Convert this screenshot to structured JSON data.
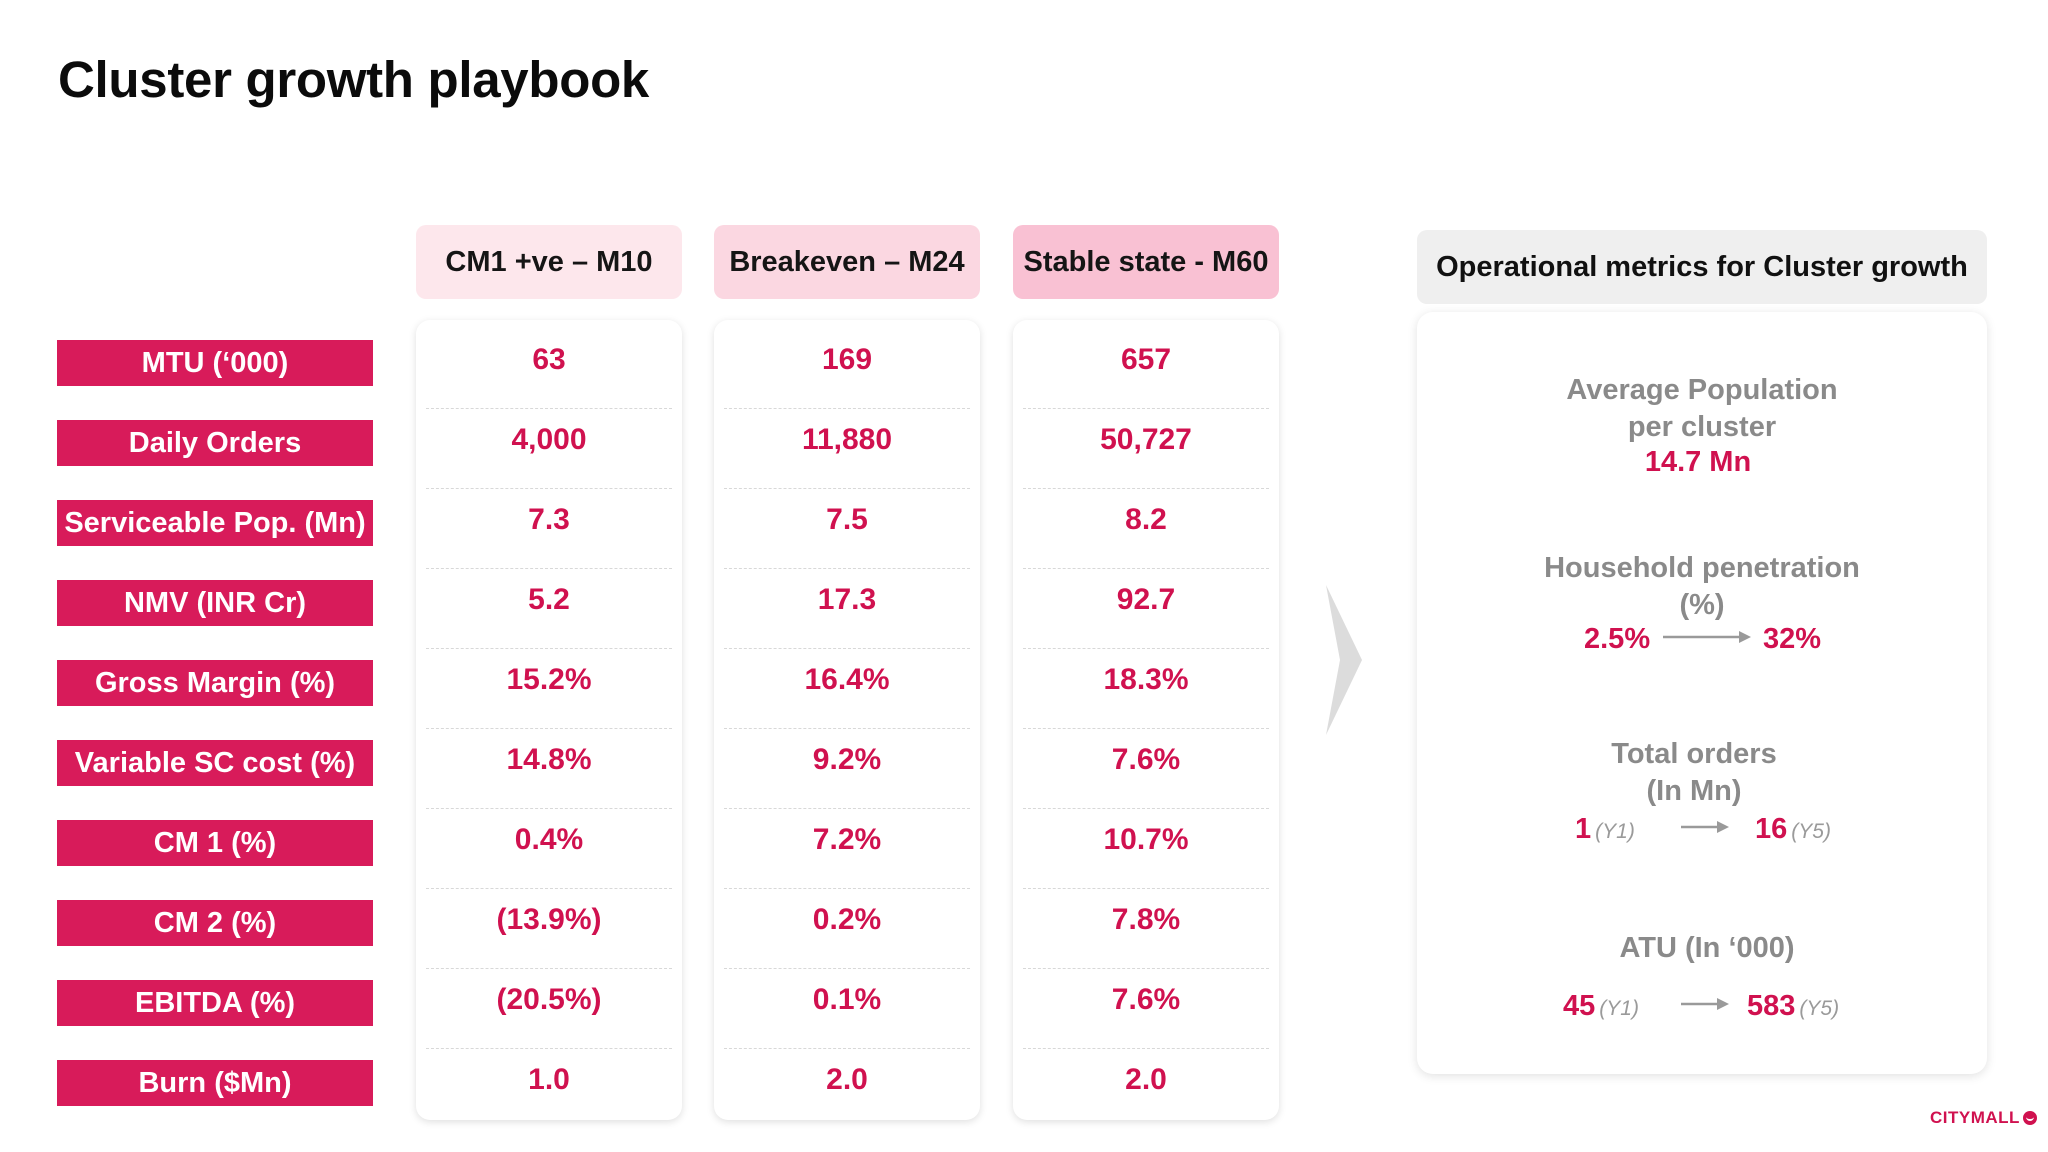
{
  "title": "Cluster growth playbook",
  "colors": {
    "accent": "#d81b5a",
    "value_text": "#d0114f",
    "header_1": "#fde7ec",
    "header_2": "#fbd7e1",
    "header_3": "#f9c1d3",
    "ops_header": "#efefef",
    "muted_text": "#8a8a8a"
  },
  "rows": [
    "MTU (‘000)",
    "Daily Orders",
    "Serviceable Pop. (Mn)",
    "NMV (INR Cr)",
    "Gross Margin (%)",
    "Variable SC cost (%)",
    "CM 1 (%)",
    "CM 2 (%)",
    "EBITDA (%)",
    "Burn ($Mn)"
  ],
  "columns": [
    {
      "header": "CM1 +ve – M10",
      "values": [
        "63",
        "4,000",
        "7.3",
        "5.2",
        "15.2%",
        "14.8%",
        "0.4%",
        "(13.9%)",
        "(20.5%)",
        "1.0"
      ]
    },
    {
      "header": "Breakeven – M24",
      "values": [
        "169",
        "11,880",
        "7.5",
        "17.3",
        "16.4%",
        "9.2%",
        "7.2%",
        "0.2%",
        "0.1%",
        "2.0"
      ]
    },
    {
      "header": "Stable state - M60",
      "values": [
        "657",
        "50,727",
        "8.2",
        "92.7",
        "18.3%",
        "7.6%",
        "10.7%",
        "7.8%",
        "7.6%",
        "2.0"
      ]
    }
  ],
  "ops": {
    "header": "Operational metrics for Cluster growth",
    "avg_population": {
      "label_line1": "Average Population",
      "label_line2": "per cluster",
      "value": "14.7 Mn"
    },
    "household_penetration": {
      "label_line1": "Household penetration",
      "label_line2": "(%)",
      "from": "2.5%",
      "to": "32%"
    },
    "total_orders": {
      "label_line1": "Total orders",
      "label_line2": "(In Mn)",
      "from": "1",
      "from_year": "(Y1)",
      "to": "16",
      "to_year": "(Y5)"
    },
    "atu": {
      "label": "ATU (In ‘000)",
      "from": "45",
      "from_year": "(Y1)",
      "to": "583",
      "to_year": "(Y5)"
    }
  },
  "logo_text": "CITYMALL"
}
